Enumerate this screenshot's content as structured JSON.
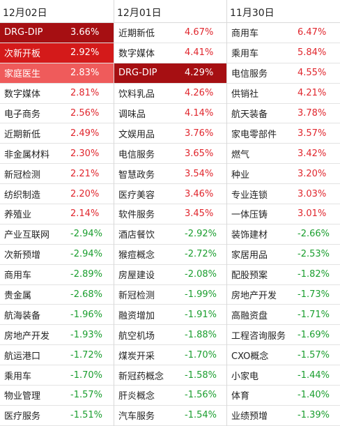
{
  "columns": [
    {
      "date": "12月02日",
      "rows": [
        {
          "name": "DRG-DIP",
          "value": "3.66%",
          "dir": "up",
          "hl": "hl1"
        },
        {
          "name": "次新开板",
          "value": "2.92%",
          "dir": "up",
          "hl": "hl2"
        },
        {
          "name": "家庭医生",
          "value": "2.83%",
          "dir": "up",
          "hl": "hl3"
        },
        {
          "name": "数字媒体",
          "value": "2.81%",
          "dir": "up"
        },
        {
          "name": "电子商务",
          "value": "2.56%",
          "dir": "up"
        },
        {
          "name": "近期新低",
          "value": "2.49%",
          "dir": "up"
        },
        {
          "name": "非金属材料",
          "value": "2.30%",
          "dir": "up"
        },
        {
          "name": "新冠检测",
          "value": "2.21%",
          "dir": "up"
        },
        {
          "name": "纺织制造",
          "value": "2.20%",
          "dir": "up"
        },
        {
          "name": "养殖业",
          "value": "2.14%",
          "dir": "up"
        },
        {
          "name": "产业互联网",
          "value": "-2.94%",
          "dir": "down"
        },
        {
          "name": "次新预增",
          "value": "-2.94%",
          "dir": "down"
        },
        {
          "name": "商用车",
          "value": "-2.89%",
          "dir": "down"
        },
        {
          "name": "贵金属",
          "value": "-2.68%",
          "dir": "down"
        },
        {
          "name": "航海装备",
          "value": "-1.96%",
          "dir": "down"
        },
        {
          "name": "房地产开发",
          "value": "-1.93%",
          "dir": "down"
        },
        {
          "name": "航运港口",
          "value": "-1.72%",
          "dir": "down"
        },
        {
          "name": "乘用车",
          "value": "-1.70%",
          "dir": "down"
        },
        {
          "name": "物业管理",
          "value": "-1.57%",
          "dir": "down"
        },
        {
          "name": "医疗服务",
          "value": "-1.51%",
          "dir": "down"
        }
      ]
    },
    {
      "date": "12月01日",
      "rows": [
        {
          "name": "近期新低",
          "value": "4.67%",
          "dir": "up"
        },
        {
          "name": "数字媒体",
          "value": "4.41%",
          "dir": "up"
        },
        {
          "name": "DRG-DIP",
          "value": "4.29%",
          "dir": "up",
          "hl": "hl1"
        },
        {
          "name": "饮料乳品",
          "value": "4.26%",
          "dir": "up"
        },
        {
          "name": "调味品",
          "value": "4.14%",
          "dir": "up"
        },
        {
          "name": "文娱用品",
          "value": "3.76%",
          "dir": "up"
        },
        {
          "name": "电信服务",
          "value": "3.65%",
          "dir": "up"
        },
        {
          "name": "智慧政务",
          "value": "3.54%",
          "dir": "up"
        },
        {
          "name": "医疗美容",
          "value": "3.46%",
          "dir": "up"
        },
        {
          "name": "软件服务",
          "value": "3.45%",
          "dir": "up"
        },
        {
          "name": "酒店餐饮",
          "value": "-2.92%",
          "dir": "down"
        },
        {
          "name": "猴痘概念",
          "value": "-2.72%",
          "dir": "down"
        },
        {
          "name": "房屋建设",
          "value": "-2.08%",
          "dir": "down"
        },
        {
          "name": "新冠检测",
          "value": "-1.99%",
          "dir": "down"
        },
        {
          "name": "融资增加",
          "value": "-1.91%",
          "dir": "down"
        },
        {
          "name": "航空机场",
          "value": "-1.88%",
          "dir": "down"
        },
        {
          "name": "煤炭开采",
          "value": "-1.70%",
          "dir": "down"
        },
        {
          "name": "新冠药概念",
          "value": "-1.58%",
          "dir": "down"
        },
        {
          "name": "肝炎概念",
          "value": "-1.56%",
          "dir": "down"
        },
        {
          "name": "汽车服务",
          "value": "-1.54%",
          "dir": "down"
        }
      ]
    },
    {
      "date": "11月30日",
      "rows": [
        {
          "name": "商用车",
          "value": "6.47%",
          "dir": "up"
        },
        {
          "name": "乘用车",
          "value": "5.84%",
          "dir": "up"
        },
        {
          "name": "电信服务",
          "value": "4.55%",
          "dir": "up"
        },
        {
          "name": "供销社",
          "value": "4.21%",
          "dir": "up"
        },
        {
          "name": "航天装备",
          "value": "3.78%",
          "dir": "up"
        },
        {
          "name": "家电零部件",
          "value": "3.57%",
          "dir": "up"
        },
        {
          "name": "燃气",
          "value": "3.42%",
          "dir": "up"
        },
        {
          "name": "种业",
          "value": "3.20%",
          "dir": "up"
        },
        {
          "name": "专业连锁",
          "value": "3.03%",
          "dir": "up"
        },
        {
          "name": "一体压铸",
          "value": "3.01%",
          "dir": "up"
        },
        {
          "name": "装饰建材",
          "value": "-2.66%",
          "dir": "down"
        },
        {
          "name": "家居用品",
          "value": "-2.53%",
          "dir": "down"
        },
        {
          "name": "配股预案",
          "value": "-1.82%",
          "dir": "down"
        },
        {
          "name": "房地产开发",
          "value": "-1.73%",
          "dir": "down"
        },
        {
          "name": "高融资盘",
          "value": "-1.71%",
          "dir": "down"
        },
        {
          "name": "工程咨询服务",
          "value": "-1.69%",
          "dir": "down"
        },
        {
          "name": "CXO概念",
          "value": "-1.57%",
          "dir": "down"
        },
        {
          "name": "小家电",
          "value": "-1.44%",
          "dir": "down"
        },
        {
          "name": "体育",
          "value": "-1.40%",
          "dir": "down"
        },
        {
          "name": "业绩预增",
          "value": "-1.39%",
          "dir": "down"
        }
      ]
    }
  ]
}
